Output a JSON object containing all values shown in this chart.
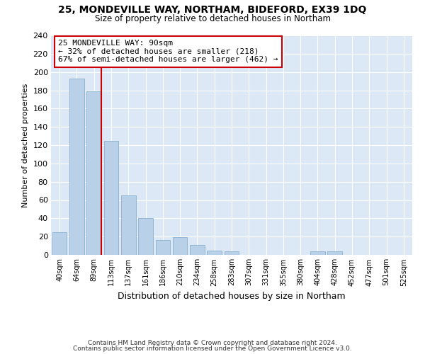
{
  "title1": "25, MONDEVILLE WAY, NORTHAM, BIDEFORD, EX39 1DQ",
  "title2": "Size of property relative to detached houses in Northam",
  "xlabel": "Distribution of detached houses by size in Northam",
  "ylabel": "Number of detached properties",
  "categories": [
    "40sqm",
    "64sqm",
    "89sqm",
    "113sqm",
    "137sqm",
    "161sqm",
    "186sqm",
    "210sqm",
    "234sqm",
    "258sqm",
    "283sqm",
    "307sqm",
    "331sqm",
    "355sqm",
    "380sqm",
    "404sqm",
    "428sqm",
    "452sqm",
    "477sqm",
    "501sqm",
    "525sqm"
  ],
  "values": [
    25,
    193,
    179,
    125,
    65,
    40,
    16,
    19,
    11,
    5,
    4,
    0,
    0,
    0,
    0,
    4,
    4,
    0,
    0,
    0,
    0
  ],
  "bar_color": "#b8d0e8",
  "bar_edge_color": "#8ab0cc",
  "vline_x": 2,
  "vline_color": "#cc0000",
  "annotation_line1": "25 MONDEVILLE WAY: 90sqm",
  "annotation_line2": "← 32% of detached houses are smaller (218)",
  "annotation_line3": "67% of semi-detached houses are larger (462) →",
  "annotation_box_color": "#ffffff",
  "annotation_box_edge_color": "#cc0000",
  "ylim": [
    0,
    240
  ],
  "yticks": [
    0,
    20,
    40,
    60,
    80,
    100,
    120,
    140,
    160,
    180,
    200,
    220,
    240
  ],
  "fig_bg_color": "#ffffff",
  "plot_bg_color": "#dce8f5",
  "grid_color": "#ffffff",
  "footer1": "Contains HM Land Registry data © Crown copyright and database right 2024.",
  "footer2": "Contains public sector information licensed under the Open Government Licence v3.0."
}
